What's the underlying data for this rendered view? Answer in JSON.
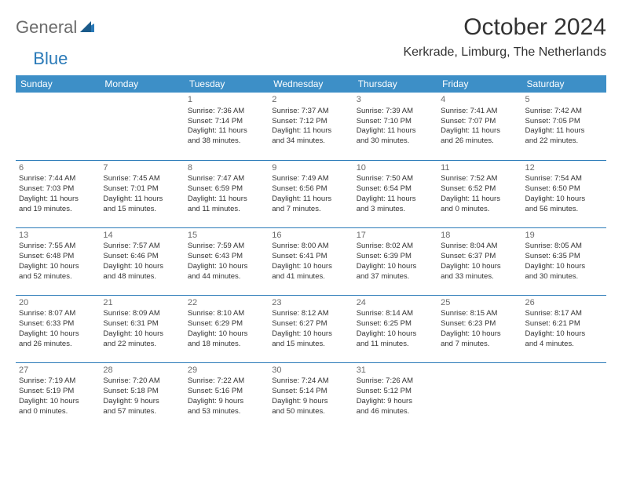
{
  "logo": {
    "general": "General",
    "blue": "Blue"
  },
  "title": "October 2024",
  "location": "Kerkrade, Limburg, The Netherlands",
  "colors": {
    "header_bg": "#3d8fc7",
    "header_text": "#ffffff",
    "accent": "#2a7ab8",
    "body_text": "#333333",
    "logo_gray": "#6b6b6b"
  },
  "weekdays": [
    "Sunday",
    "Monday",
    "Tuesday",
    "Wednesday",
    "Thursday",
    "Friday",
    "Saturday"
  ],
  "weeks": [
    [
      null,
      null,
      {
        "n": "1",
        "sr": "Sunrise: 7:36 AM",
        "ss": "Sunset: 7:14 PM",
        "dl1": "Daylight: 11 hours",
        "dl2": "and 38 minutes."
      },
      {
        "n": "2",
        "sr": "Sunrise: 7:37 AM",
        "ss": "Sunset: 7:12 PM",
        "dl1": "Daylight: 11 hours",
        "dl2": "and 34 minutes."
      },
      {
        "n": "3",
        "sr": "Sunrise: 7:39 AM",
        "ss": "Sunset: 7:10 PM",
        "dl1": "Daylight: 11 hours",
        "dl2": "and 30 minutes."
      },
      {
        "n": "4",
        "sr": "Sunrise: 7:41 AM",
        "ss": "Sunset: 7:07 PM",
        "dl1": "Daylight: 11 hours",
        "dl2": "and 26 minutes."
      },
      {
        "n": "5",
        "sr": "Sunrise: 7:42 AM",
        "ss": "Sunset: 7:05 PM",
        "dl1": "Daylight: 11 hours",
        "dl2": "and 22 minutes."
      }
    ],
    [
      {
        "n": "6",
        "sr": "Sunrise: 7:44 AM",
        "ss": "Sunset: 7:03 PM",
        "dl1": "Daylight: 11 hours",
        "dl2": "and 19 minutes."
      },
      {
        "n": "7",
        "sr": "Sunrise: 7:45 AM",
        "ss": "Sunset: 7:01 PM",
        "dl1": "Daylight: 11 hours",
        "dl2": "and 15 minutes."
      },
      {
        "n": "8",
        "sr": "Sunrise: 7:47 AM",
        "ss": "Sunset: 6:59 PM",
        "dl1": "Daylight: 11 hours",
        "dl2": "and 11 minutes."
      },
      {
        "n": "9",
        "sr": "Sunrise: 7:49 AM",
        "ss": "Sunset: 6:56 PM",
        "dl1": "Daylight: 11 hours",
        "dl2": "and 7 minutes."
      },
      {
        "n": "10",
        "sr": "Sunrise: 7:50 AM",
        "ss": "Sunset: 6:54 PM",
        "dl1": "Daylight: 11 hours",
        "dl2": "and 3 minutes."
      },
      {
        "n": "11",
        "sr": "Sunrise: 7:52 AM",
        "ss": "Sunset: 6:52 PM",
        "dl1": "Daylight: 11 hours",
        "dl2": "and 0 minutes."
      },
      {
        "n": "12",
        "sr": "Sunrise: 7:54 AM",
        "ss": "Sunset: 6:50 PM",
        "dl1": "Daylight: 10 hours",
        "dl2": "and 56 minutes."
      }
    ],
    [
      {
        "n": "13",
        "sr": "Sunrise: 7:55 AM",
        "ss": "Sunset: 6:48 PM",
        "dl1": "Daylight: 10 hours",
        "dl2": "and 52 minutes."
      },
      {
        "n": "14",
        "sr": "Sunrise: 7:57 AM",
        "ss": "Sunset: 6:46 PM",
        "dl1": "Daylight: 10 hours",
        "dl2": "and 48 minutes."
      },
      {
        "n": "15",
        "sr": "Sunrise: 7:59 AM",
        "ss": "Sunset: 6:43 PM",
        "dl1": "Daylight: 10 hours",
        "dl2": "and 44 minutes."
      },
      {
        "n": "16",
        "sr": "Sunrise: 8:00 AM",
        "ss": "Sunset: 6:41 PM",
        "dl1": "Daylight: 10 hours",
        "dl2": "and 41 minutes."
      },
      {
        "n": "17",
        "sr": "Sunrise: 8:02 AM",
        "ss": "Sunset: 6:39 PM",
        "dl1": "Daylight: 10 hours",
        "dl2": "and 37 minutes."
      },
      {
        "n": "18",
        "sr": "Sunrise: 8:04 AM",
        "ss": "Sunset: 6:37 PM",
        "dl1": "Daylight: 10 hours",
        "dl2": "and 33 minutes."
      },
      {
        "n": "19",
        "sr": "Sunrise: 8:05 AM",
        "ss": "Sunset: 6:35 PM",
        "dl1": "Daylight: 10 hours",
        "dl2": "and 30 minutes."
      }
    ],
    [
      {
        "n": "20",
        "sr": "Sunrise: 8:07 AM",
        "ss": "Sunset: 6:33 PM",
        "dl1": "Daylight: 10 hours",
        "dl2": "and 26 minutes."
      },
      {
        "n": "21",
        "sr": "Sunrise: 8:09 AM",
        "ss": "Sunset: 6:31 PM",
        "dl1": "Daylight: 10 hours",
        "dl2": "and 22 minutes."
      },
      {
        "n": "22",
        "sr": "Sunrise: 8:10 AM",
        "ss": "Sunset: 6:29 PM",
        "dl1": "Daylight: 10 hours",
        "dl2": "and 18 minutes."
      },
      {
        "n": "23",
        "sr": "Sunrise: 8:12 AM",
        "ss": "Sunset: 6:27 PM",
        "dl1": "Daylight: 10 hours",
        "dl2": "and 15 minutes."
      },
      {
        "n": "24",
        "sr": "Sunrise: 8:14 AM",
        "ss": "Sunset: 6:25 PM",
        "dl1": "Daylight: 10 hours",
        "dl2": "and 11 minutes."
      },
      {
        "n": "25",
        "sr": "Sunrise: 8:15 AM",
        "ss": "Sunset: 6:23 PM",
        "dl1": "Daylight: 10 hours",
        "dl2": "and 7 minutes."
      },
      {
        "n": "26",
        "sr": "Sunrise: 8:17 AM",
        "ss": "Sunset: 6:21 PM",
        "dl1": "Daylight: 10 hours",
        "dl2": "and 4 minutes."
      }
    ],
    [
      {
        "n": "27",
        "sr": "Sunrise: 7:19 AM",
        "ss": "Sunset: 5:19 PM",
        "dl1": "Daylight: 10 hours",
        "dl2": "and 0 minutes."
      },
      {
        "n": "28",
        "sr": "Sunrise: 7:20 AM",
        "ss": "Sunset: 5:18 PM",
        "dl1": "Daylight: 9 hours",
        "dl2": "and 57 minutes."
      },
      {
        "n": "29",
        "sr": "Sunrise: 7:22 AM",
        "ss": "Sunset: 5:16 PM",
        "dl1": "Daylight: 9 hours",
        "dl2": "and 53 minutes."
      },
      {
        "n": "30",
        "sr": "Sunrise: 7:24 AM",
        "ss": "Sunset: 5:14 PM",
        "dl1": "Daylight: 9 hours",
        "dl2": "and 50 minutes."
      },
      {
        "n": "31",
        "sr": "Sunrise: 7:26 AM",
        "ss": "Sunset: 5:12 PM",
        "dl1": "Daylight: 9 hours",
        "dl2": "and 46 minutes."
      },
      null,
      null
    ]
  ]
}
